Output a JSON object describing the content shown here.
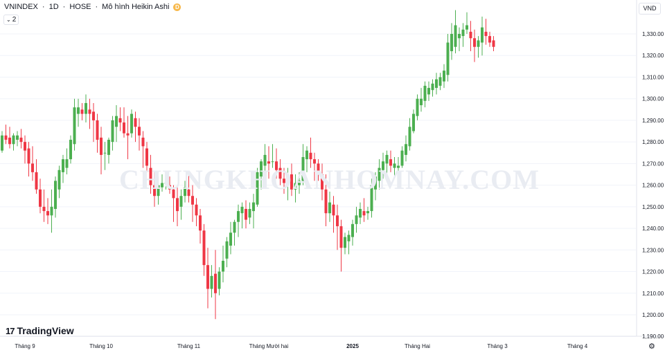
{
  "header": {
    "symbol": "VNINDEX",
    "interval": "1D",
    "exchange": "HOSE",
    "chart_style": "Mô hình Heikin Ashi",
    "sep": "·",
    "badge": "D",
    "indicator_count": "2",
    "currency": "VND"
  },
  "watermark": "CHUNGKHOANHOMNAY.COM",
  "branding": {
    "logo_text": "TradingView",
    "logo_mark": "17"
  },
  "colors": {
    "up": "#4caf50",
    "down": "#ef3745",
    "axis_text": "#131722",
    "grid": "#f0f3fa"
  },
  "chart_data": {
    "type": "candlestick",
    "style": "Heikin Ashi",
    "ylim": [
      1186,
      1345
    ],
    "y_ticks": [
      1190,
      1200,
      1210,
      1220,
      1230,
      1240,
      1250,
      1260,
      1270,
      1280,
      1290,
      1300,
      1310,
      1320,
      1330
    ],
    "y_tick_labels": [
      "1,190.00",
      "1,200.00",
      "1,210.00",
      "1,220.00",
      "1,230.00",
      "1,240.00",
      "1,250.00",
      "1,260.00",
      "1,270.00",
      "1,280.00",
      "1,290.00",
      "1,300.00",
      "1,310.00",
      "1,320.00",
      "1,330.00"
    ],
    "x_labels": [
      {
        "label": "Tháng 9",
        "index": 6,
        "bold": false
      },
      {
        "label": "Tháng 10",
        "index": 26,
        "bold": false
      },
      {
        "label": "Tháng 11",
        "index": 49,
        "bold": false
      },
      {
        "label": "Tháng Mười hai",
        "index": 70,
        "bold": false
      },
      {
        "label": "2025",
        "index": 92,
        "bold": true
      },
      {
        "label": "Tháng Hai",
        "index": 109,
        "bold": false
      },
      {
        "label": "Tháng 3",
        "index": 130,
        "bold": false
      },
      {
        "label": "Tháng 4",
        "index": 151,
        "bold": false
      }
    ],
    "candles": [
      [
        1276,
        1285,
        1275,
        1283
      ],
      [
        1283,
        1288,
        1279,
        1281
      ],
      [
        1282,
        1287,
        1277,
        1279
      ],
      [
        1279,
        1284,
        1276,
        1283
      ],
      [
        1281,
        1285,
        1278,
        1283
      ],
      [
        1282,
        1286,
        1277,
        1280
      ],
      [
        1280,
        1283,
        1270,
        1276
      ],
      [
        1277,
        1280,
        1264,
        1270
      ],
      [
        1270,
        1278,
        1262,
        1266
      ],
      [
        1266,
        1272,
        1256,
        1258
      ],
      [
        1258,
        1263,
        1247,
        1250
      ],
      [
        1250,
        1258,
        1243,
        1248
      ],
      [
        1248,
        1254,
        1242,
        1246
      ],
      [
        1246,
        1258,
        1238,
        1250
      ],
      [
        1249,
        1264,
        1245,
        1262
      ],
      [
        1258,
        1269,
        1254,
        1267
      ],
      [
        1266,
        1274,
        1261,
        1272
      ],
      [
        1268,
        1277,
        1265,
        1272
      ],
      [
        1272,
        1283,
        1270,
        1281
      ],
      [
        1279,
        1300,
        1276,
        1296
      ],
      [
        1293,
        1300,
        1287,
        1296
      ],
      [
        1295,
        1298,
        1290,
        1293
      ],
      [
        1293,
        1302,
        1289,
        1298
      ],
      [
        1295,
        1300,
        1286,
        1293
      ],
      [
        1294,
        1298,
        1280,
        1290
      ],
      [
        1290,
        1293,
        1275,
        1281
      ],
      [
        1282,
        1287,
        1265,
        1274
      ],
      [
        1275,
        1280,
        1267,
        1275
      ],
      [
        1274,
        1282,
        1270,
        1281
      ],
      [
        1280,
        1292,
        1276,
        1290
      ],
      [
        1287,
        1297,
        1280,
        1292
      ],
      [
        1291,
        1296,
        1285,
        1289
      ],
      [
        1289,
        1296,
        1282,
        1284
      ],
      [
        1284,
        1292,
        1272,
        1283
      ],
      [
        1284,
        1295,
        1282,
        1293
      ],
      [
        1291,
        1294,
        1280,
        1287
      ],
      [
        1287,
        1291,
        1276,
        1283
      ],
      [
        1282,
        1285,
        1268,
        1278
      ],
      [
        1277,
        1280,
        1266,
        1269
      ],
      [
        1268,
        1274,
        1256,
        1260
      ],
      [
        1260,
        1266,
        1250,
        1255
      ],
      [
        1255,
        1264,
        1251,
        1260
      ],
      [
        1259,
        1265,
        1257,
        1261
      ],
      [
        1261,
        1264,
        1258,
        1261
      ],
      [
        1260,
        1264,
        1256,
        1258
      ],
      [
        1258,
        1260,
        1243,
        1254
      ],
      [
        1254,
        1260,
        1241,
        1248
      ],
      [
        1250,
        1258,
        1244,
        1255
      ],
      [
        1255,
        1262,
        1252,
        1259
      ],
      [
        1258,
        1266,
        1252,
        1255
      ],
      [
        1255,
        1260,
        1243,
        1251
      ],
      [
        1251,
        1254,
        1241,
        1246
      ],
      [
        1246,
        1249,
        1233,
        1239
      ],
      [
        1239,
        1242,
        1218,
        1223
      ],
      [
        1223,
        1231,
        1203,
        1212
      ],
      [
        1212,
        1223,
        1208,
        1218
      ],
      [
        1219,
        1230,
        1198,
        1210
      ],
      [
        1212,
        1222,
        1209,
        1220
      ],
      [
        1220,
        1232,
        1215,
        1225
      ],
      [
        1226,
        1236,
        1222,
        1234
      ],
      [
        1232,
        1243,
        1228,
        1238
      ],
      [
        1238,
        1244,
        1232,
        1243
      ],
      [
        1243,
        1251,
        1236,
        1248
      ],
      [
        1247,
        1252,
        1240,
        1250
      ],
      [
        1249,
        1253,
        1240,
        1244
      ],
      [
        1245,
        1252,
        1242,
        1249
      ],
      [
        1248,
        1256,
        1240,
        1252
      ],
      [
        1251,
        1268,
        1250,
        1266
      ],
      [
        1264,
        1272,
        1258,
        1271
      ],
      [
        1269,
        1279,
        1266,
        1274
      ],
      [
        1271,
        1278,
        1263,
        1270
      ],
      [
        1271,
        1279,
        1268,
        1271
      ],
      [
        1271,
        1277,
        1263,
        1267
      ],
      [
        1268,
        1272,
        1260,
        1263
      ],
      [
        1263,
        1268,
        1256,
        1261
      ],
      [
        1261,
        1268,
        1253,
        1265
      ],
      [
        1265,
        1270,
        1255,
        1258
      ],
      [
        1258,
        1265,
        1252,
        1261
      ],
      [
        1260,
        1266,
        1256,
        1262
      ],
      [
        1262,
        1279,
        1260,
        1273
      ],
      [
        1272,
        1278,
        1266,
        1276
      ],
      [
        1275,
        1282,
        1268,
        1272
      ],
      [
        1272,
        1275,
        1262,
        1270
      ],
      [
        1270,
        1272,
        1262,
        1265
      ],
      [
        1265,
        1270,
        1253,
        1258
      ],
      [
        1258,
        1265,
        1241,
        1247
      ],
      [
        1247,
        1257,
        1243,
        1252
      ],
      [
        1251,
        1255,
        1238,
        1246
      ],
      [
        1246,
        1251,
        1230,
        1241
      ],
      [
        1241,
        1244,
        1220,
        1231
      ],
      [
        1231,
        1238,
        1228,
        1236
      ],
      [
        1234,
        1239,
        1228,
        1237
      ],
      [
        1236,
        1244,
        1232,
        1242
      ],
      [
        1242,
        1250,
        1238,
        1246
      ],
      [
        1245,
        1252,
        1242,
        1249
      ],
      [
        1248,
        1254,
        1243,
        1246
      ],
      [
        1247,
        1250,
        1244,
        1248
      ],
      [
        1248,
        1263,
        1245,
        1260
      ],
      [
        1258,
        1266,
        1253,
        1264
      ],
      [
        1262,
        1272,
        1258,
        1268
      ],
      [
        1267,
        1275,
        1263,
        1271
      ],
      [
        1270,
        1276,
        1265,
        1274
      ],
      [
        1272,
        1276,
        1266,
        1269
      ],
      [
        1268,
        1273,
        1264,
        1270
      ],
      [
        1268,
        1273,
        1266,
        1269
      ],
      [
        1269,
        1278,
        1268,
        1276
      ],
      [
        1274,
        1283,
        1271,
        1279
      ],
      [
        1278,
        1291,
        1276,
        1287
      ],
      [
        1285,
        1295,
        1284,
        1293
      ],
      [
        1292,
        1302,
        1290,
        1300
      ],
      [
        1297,
        1305,
        1294,
        1300
      ],
      [
        1299,
        1308,
        1296,
        1306
      ],
      [
        1302,
        1308,
        1299,
        1305
      ],
      [
        1304,
        1309,
        1301,
        1307
      ],
      [
        1305,
        1312,
        1302,
        1309
      ],
      [
        1306,
        1312,
        1304,
        1310
      ],
      [
        1308,
        1316,
        1305,
        1313
      ],
      [
        1311,
        1330,
        1308,
        1326
      ],
      [
        1322,
        1335,
        1318,
        1330
      ],
      [
        1324,
        1341,
        1321,
        1334
      ],
      [
        1328,
        1333,
        1322,
        1330
      ],
      [
        1329,
        1335,
        1324,
        1332
      ],
      [
        1332,
        1340,
        1330,
        1334
      ],
      [
        1331,
        1336,
        1322,
        1328
      ],
      [
        1328,
        1332,
        1317,
        1324
      ],
      [
        1324,
        1329,
        1319,
        1327
      ],
      [
        1326,
        1338,
        1320,
        1333
      ],
      [
        1331,
        1337,
        1325,
        1329
      ],
      [
        1329,
        1331,
        1324,
        1326
      ],
      [
        1327,
        1329,
        1322,
        1324
      ]
    ]
  }
}
